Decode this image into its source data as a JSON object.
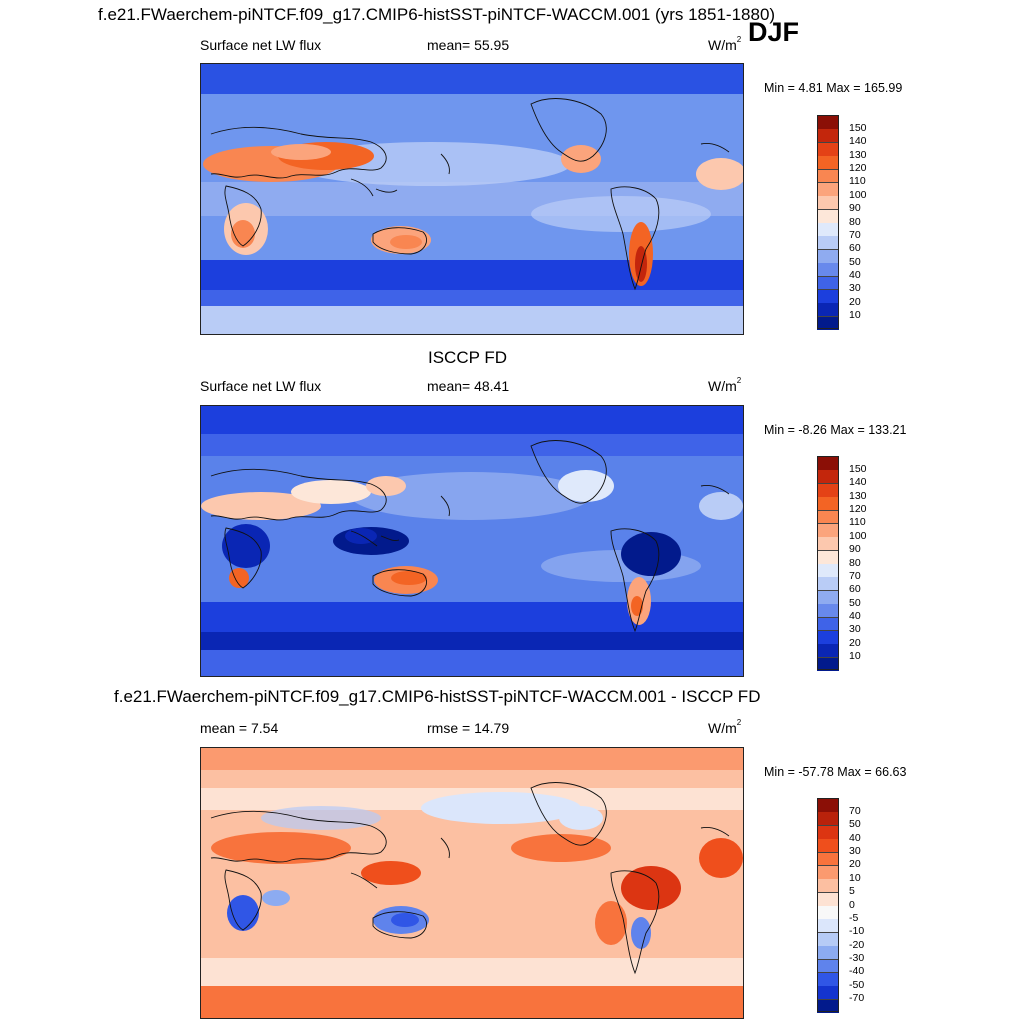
{
  "header": {
    "run_title": "f.e21.FWaerchem-piNTCF.f09_g17.CMIP6-histSST-piNTCF-WACCM.001 (yrs 1851-1880)",
    "season": "DJF"
  },
  "panels": [
    {
      "id": "model",
      "title": "",
      "variable": "Surface net LW flux",
      "stat_text": "mean=  55.95",
      "units_base": "W/m",
      "units_exp": "2",
      "minmax": "Min =   4.81 Max = 165.99",
      "colorbar": {
        "labels": [
          "150",
          "140",
          "130",
          "120",
          "110",
          "100",
          "90",
          "80",
          "70",
          "60",
          "50",
          "40",
          "30",
          "20",
          "10"
        ],
        "colors": [
          "#8b0f06",
          "#c3260c",
          "#e44216",
          "#f36424",
          "#f98651",
          "#fba47c",
          "#fcc8ae",
          "#fde7d9",
          "#dfe9fb",
          "#b9ccf6",
          "#8fabf0",
          "#6889ec",
          "#3f63e8",
          "#1c3fdd",
          "#0a26b4",
          "#021a8c"
        ]
      },
      "fields": {
        "ocean": "#6f96ee",
        "regions": [
          "cold-ocean-band",
          "subtropical-desert",
          "australia-interior",
          "andes-lee",
          "polar-ice"
        ]
      }
    },
    {
      "id": "obs",
      "title": "ISCCP FD",
      "variable": "Surface net LW flux",
      "stat_text": "mean=  48.41",
      "units_base": "W/m",
      "units_exp": "2",
      "minmax": "Min =  -8.26 Max = 133.21",
      "colorbar": {
        "labels": [
          "150",
          "140",
          "130",
          "120",
          "110",
          "100",
          "90",
          "80",
          "70",
          "60",
          "50",
          "40",
          "30",
          "20",
          "10"
        ],
        "colors": [
          "#8b0f06",
          "#c3260c",
          "#e44216",
          "#f36424",
          "#f98651",
          "#fba47c",
          "#fcc8ae",
          "#fde7d9",
          "#dfe9fb",
          "#b9ccf6",
          "#8fabf0",
          "#6889ec",
          "#3f63e8",
          "#1c3fdd",
          "#0a26b4",
          "#021a8c"
        ]
      },
      "fields": {
        "ocean": "#5a82ea",
        "regions": [
          "cold-ocean-band",
          "maritime-continent",
          "amazon",
          "australia-interior",
          "polar-ice"
        ]
      }
    },
    {
      "id": "diff",
      "title": "f.e21.FWaerchem-piNTCF.f09_g17.CMIP6-histSST-piNTCF-WACCM.001 - ISCCP FD",
      "variable": "mean =   7.54",
      "stat_text": "rmse =  14.79",
      "units_base": "W/m",
      "units_exp": "2",
      "minmax": "Min = -57.78 Max =  66.63",
      "colorbar": {
        "labels": [
          "70",
          "50",
          "40",
          "30",
          "20",
          "10",
          "5",
          "0",
          "-5",
          "-10",
          "-20",
          "-30",
          "-40",
          "-50",
          "-70"
        ],
        "colors": [
          "#8b0f06",
          "#b9220b",
          "#dc3512",
          "#ef4f1c",
          "#f8733d",
          "#fb9a6f",
          "#fcbfa1",
          "#fde2d3",
          "#f8f8f8",
          "#dbe6fb",
          "#b6cbf6",
          "#8cabf1",
          "#5f83ec",
          "#3056e6",
          "#1434cf",
          "#021a8c"
        ]
      },
      "fields": {
        "ocean": "#fcc0a2",
        "regions": [
          "positive-subtropics",
          "negative-africa",
          "negative-australia",
          "positive-south-america",
          "polar-bands"
        ]
      }
    }
  ]
}
